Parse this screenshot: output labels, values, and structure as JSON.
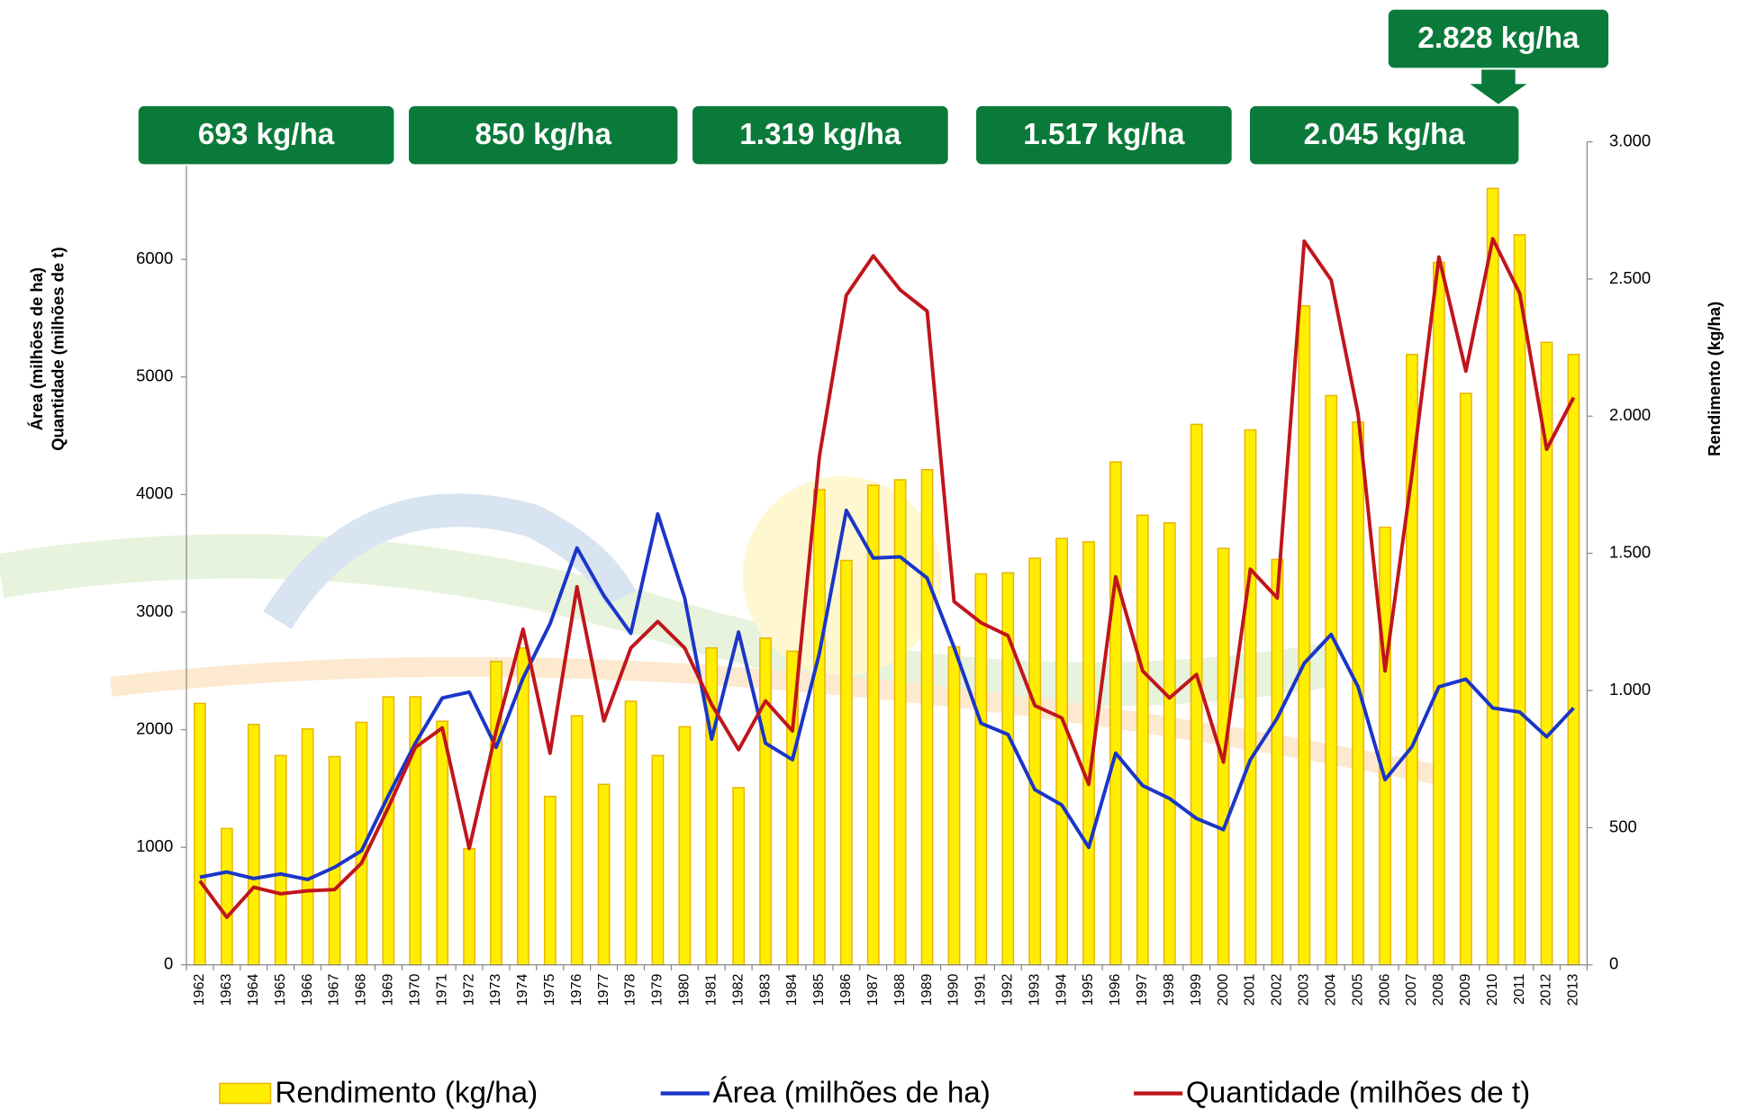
{
  "chart_data": {
    "type": "bar",
    "categories": [
      1962,
      1963,
      1964,
      1965,
      1966,
      1967,
      1968,
      1969,
      1970,
      1971,
      1972,
      1973,
      1974,
      1975,
      1976,
      1977,
      1978,
      1979,
      1980,
      1981,
      1982,
      1983,
      1984,
      1985,
      1986,
      1987,
      1988,
      1989,
      1990,
      1991,
      1992,
      1993,
      1994,
      1995,
      1996,
      1997,
      1998,
      1999,
      2000,
      2001,
      2002,
      2003,
      2004,
      2005,
      2006,
      2007,
      2008,
      2009,
      2010,
      2011,
      2012,
      2013
    ],
    "series": [
      {
        "name": "Rendimento (kg/ha)",
        "type": "bar",
        "axis": "y2",
        "color": "#ffee00",
        "edge": "#e8b400",
        "values": [
          953,
          497,
          876,
          763,
          860,
          759,
          884,
          977,
          977,
          888,
          424,
          1106,
          1155,
          614,
          908,
          658,
          961,
          763,
          868,
          1155,
          646,
          1191,
          1143,
          1732,
          1474,
          1748,
          1768,
          1805,
          1159,
          1425,
          1429,
          1482,
          1554,
          1542,
          1833,
          1639,
          1611,
          1970,
          1518,
          1950,
          1478,
          2402,
          2075,
          1978,
          1595,
          2225,
          2560,
          2083,
          2830,
          2661,
          2269,
          2225
        ]
      },
      {
        "name": "Área (milhões de ha)",
        "type": "line",
        "color": "#1a36c8",
        "values": [
          745,
          790,
          735,
          773,
          726,
          830,
          970,
          1440,
          1885,
          2270,
          2320,
          1850,
          2440,
          2900,
          3545,
          3140,
          2820,
          3835,
          3120,
          1920,
          2830,
          1885,
          1745,
          2650,
          3865,
          3460,
          3470,
          3290,
          2700,
          2055,
          1960,
          1490,
          1360,
          1000,
          1800,
          1525,
          1415,
          1245,
          1150,
          1745,
          2100,
          2565,
          2810,
          2365,
          1575,
          1855,
          2365,
          2430,
          2185,
          2150,
          1940,
          2185
        ]
      },
      {
        "name": "Quantidade (milhões de t)",
        "type": "line",
        "color": "#c0151c",
        "values": [
          715,
          405,
          660,
          605,
          630,
          640,
          865,
          1340,
          1850,
          2015,
          990,
          1990,
          2855,
          1800,
          3215,
          2075,
          2695,
          2920,
          2695,
          2215,
          1830,
          2245,
          1990,
          4325,
          5695,
          6030,
          5740,
          5560,
          3090,
          2910,
          2800,
          2205,
          2100,
          1535,
          3300,
          2500,
          2270,
          2470,
          1725,
          3365,
          3120,
          6155,
          5825,
          4685,
          2500,
          4175,
          6020,
          5050,
          6175,
          5710,
          4385,
          4825
        ]
      }
    ],
    "ylabel": [
      "Área (milhões de ha)",
      "Quantidade (milhões de t)"
    ],
    "y2label": "Rendimento (kg/ha)",
    "ylim": [
      0,
      7000
    ],
    "yticks": [
      0,
      1000,
      2000,
      3000,
      4000,
      5000,
      6000,
      7000
    ],
    "y2lim": [
      0,
      3000
    ],
    "y2ticks": [
      0,
      500,
      {
        "value": 1000,
        "label": "1.000"
      },
      {
        "value": 1500,
        "label": "1.500"
      },
      {
        "value": 2000,
        "label": "2.000"
      },
      {
        "value": 2500,
        "label": "2.500"
      },
      {
        "value": 3000,
        "label": "3.000"
      }
    ],
    "annotations": [
      "693 kg/ha",
      "850 kg/ha",
      "1.319 kg/ha",
      "1.517 kg/ha",
      "2.045 kg/ha",
      "2.828 kg/ha"
    ],
    "annotation_color": "#0a7a3a",
    "legend": "bottom"
  }
}
